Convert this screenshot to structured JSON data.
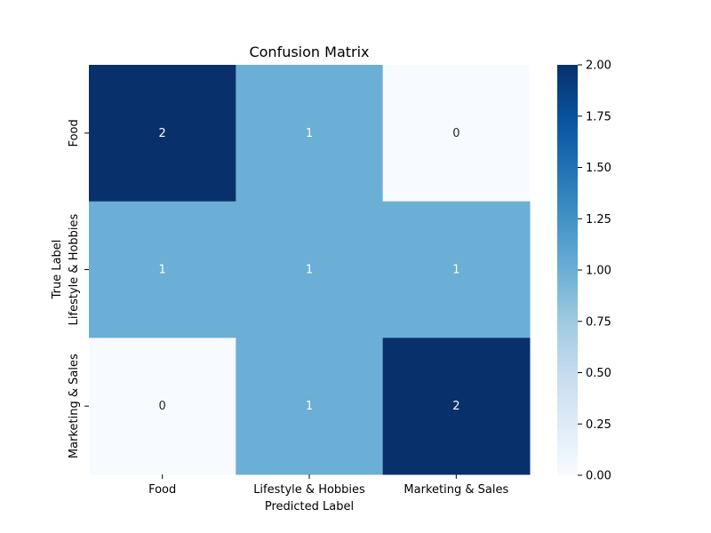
{
  "chart_data": {
    "type": "heatmap",
    "title": "Confusion Matrix",
    "xlabel": "Predicted Label",
    "ylabel": "True Label",
    "x_categories": [
      "Food",
      "Lifestyle & Hobbies",
      "Marketing & Sales"
    ],
    "y_categories": [
      "Food",
      "Lifestyle & Hobbies",
      "Marketing & Sales"
    ],
    "values": [
      [
        2,
        1,
        0
      ],
      [
        1,
        1,
        1
      ],
      [
        0,
        1,
        2
      ]
    ],
    "colormap": "Blues",
    "colors": {
      "low": "#f7fbff",
      "mid": "#6baed6",
      "high": "#08306b",
      "text_dark": "#262626",
      "text_light": "#ffffff"
    },
    "colorbar": {
      "range": [
        0,
        2
      ],
      "ticks": [
        "0.00",
        "0.25",
        "0.50",
        "0.75",
        "1.00",
        "1.25",
        "1.50",
        "1.75",
        "2.00"
      ]
    },
    "grid": false
  }
}
